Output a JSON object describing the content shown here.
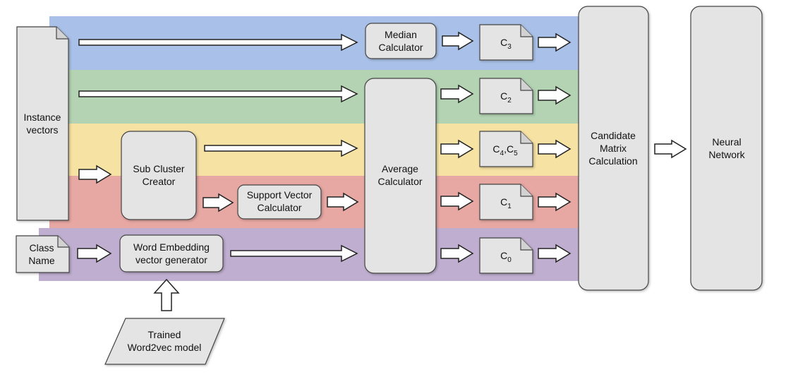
{
  "bands": [
    {
      "name": "band-c3",
      "color": "#a9c1e8"
    },
    {
      "name": "band-c2",
      "color": "#b3d3b3"
    },
    {
      "name": "band-c45",
      "color": "#f6e2a3"
    },
    {
      "name": "band-c1",
      "color": "#e7a7a3"
    },
    {
      "name": "band-c0",
      "color": "#c0aed0"
    }
  ],
  "nodes": {
    "instance_vectors": {
      "line1": "Instance",
      "line2": "vectors"
    },
    "class_name": {
      "line1": "Class",
      "line2": "Name"
    },
    "median_calculator": {
      "line1": "Median",
      "line2": "Calculator"
    },
    "sub_cluster_creator": {
      "line1": "Sub Cluster",
      "line2": "Creator"
    },
    "support_vector_calculator": {
      "line1": "Support Vector",
      "line2": "Calculator"
    },
    "word_embedding_generator": {
      "line1": "Word Embedding",
      "line2": "vector generator"
    },
    "average_calculator": {
      "line1": "Average",
      "line2": "Calculator"
    },
    "candidate_matrix": {
      "line1": "Candidate",
      "line2": "Matrix",
      "line3": "Calculation"
    },
    "neural_network": {
      "line1": "Neural",
      "line2": "Network"
    },
    "trained_model": {
      "line1": "Trained",
      "line2": "Word2vec model"
    }
  },
  "outputs": {
    "c3": {
      "base": "C",
      "sub": "3"
    },
    "c2": {
      "base": "C",
      "sub": "2"
    },
    "c45": {
      "base": "C",
      "sub": "4",
      "sep": ",C",
      "sub2": "5"
    },
    "c1": {
      "base": "C",
      "sub": "1"
    },
    "c0": {
      "base": "C",
      "sub": "0"
    }
  }
}
